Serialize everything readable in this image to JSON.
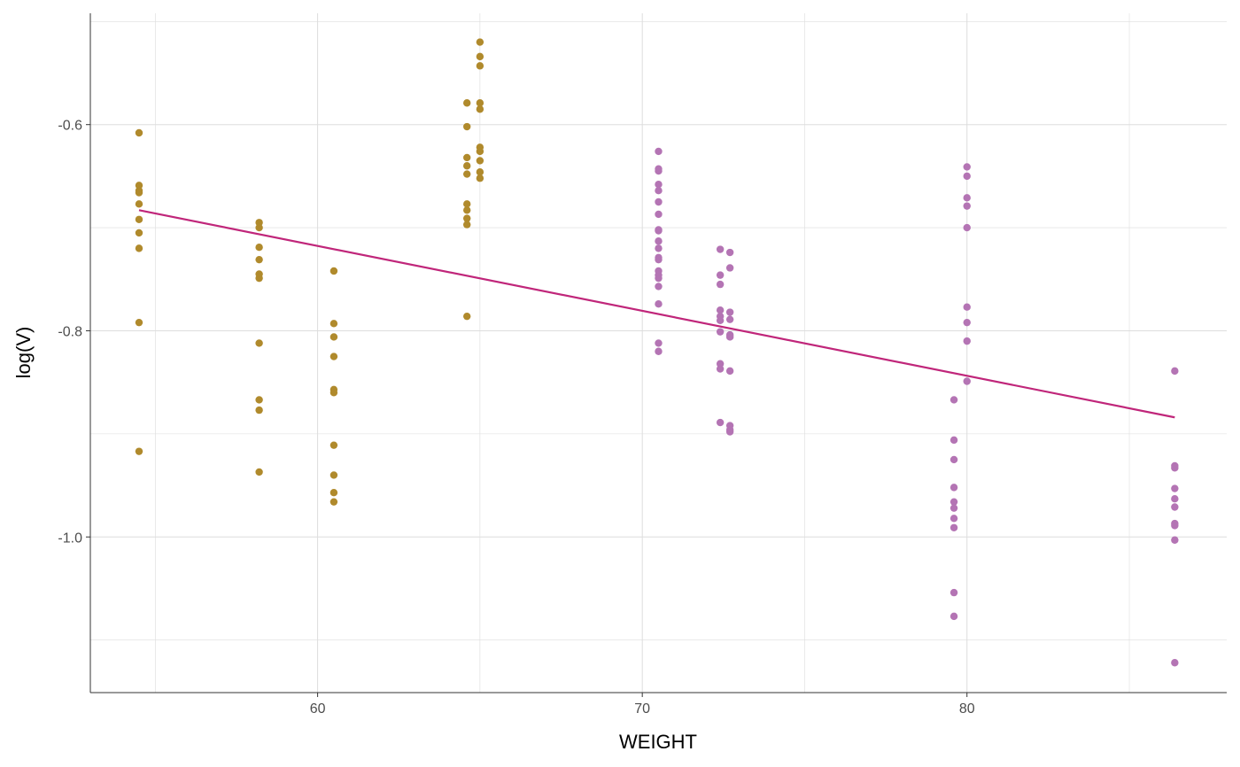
{
  "chart_data": {
    "type": "scatter",
    "title": "",
    "xlabel": "WEIGHT",
    "ylabel": "log(V)",
    "xlim": [
      53,
      88
    ],
    "ylim": [
      -1.151,
      -0.492
    ],
    "x_ticks": [
      60,
      70,
      80
    ],
    "x_tick_labels": [
      "60",
      "70",
      "80"
    ],
    "x_minor_grid": [
      55,
      65,
      75,
      85
    ],
    "y_ticks": [
      -0.6,
      -0.8,
      -1.0
    ],
    "y_tick_labels": [
      "-0.6",
      "-0.8",
      "-1.0"
    ],
    "y_minor_grid": [
      -0.5,
      -0.7,
      -0.9,
      -1.1
    ],
    "grid": true,
    "legend": "none",
    "colors": {
      "group_a": "#B08A2C",
      "group_b": "#B474B4",
      "fit_line": "#C0267A",
      "grid": "#dddddd",
      "axis": "#333333"
    },
    "groups": [
      {
        "color_key": "group_a",
        "points": [
          {
            "x": 54.5,
            "y": [
              -0.608,
              -0.659,
              -0.664,
              -0.666,
              -0.677,
              -0.692,
              -0.705,
              -0.72,
              -0.792,
              -0.917
            ]
          },
          {
            "x": 58.2,
            "y": [
              -0.695,
              -0.7,
              -0.719,
              -0.731,
              -0.745,
              -0.749,
              -0.812,
              -0.867,
              -0.877,
              -0.937
            ]
          },
          {
            "x": 60.5,
            "y": [
              -0.742,
              -0.793,
              -0.806,
              -0.825,
              -0.857,
              -0.86,
              -0.911,
              -0.94,
              -0.957,
              -0.966
            ]
          },
          {
            "x": 64.6,
            "y": [
              -0.579,
              -0.602,
              -0.632,
              -0.64,
              -0.648,
              -0.677,
              -0.683,
              -0.691,
              -0.697,
              -0.786
            ]
          },
          {
            "x": 65.0,
            "y": [
              -0.52,
              -0.534,
              -0.543,
              -0.579,
              -0.585,
              -0.622,
              -0.626,
              -0.635,
              -0.646,
              -0.652
            ]
          }
        ]
      },
      {
        "color_key": "group_b",
        "points": [
          {
            "x": 70.5,
            "y": [
              -0.626,
              -0.643,
              -0.645,
              -0.658,
              -0.664,
              -0.675,
              -0.687,
              -0.702,
              -0.703,
              -0.713,
              -0.72,
              -0.729,
              -0.731,
              -0.742,
              -0.746,
              -0.749,
              -0.757,
              -0.774,
              -0.812,
              -0.82
            ]
          },
          {
            "x": 72.4,
            "y": [
              -0.721,
              -0.746,
              -0.755,
              -0.78,
              -0.786,
              -0.79,
              -0.801,
              -0.832,
              -0.837,
              -0.889
            ]
          },
          {
            "x": 72.7,
            "y": [
              -0.724,
              -0.739,
              -0.782,
              -0.789,
              -0.804,
              -0.806,
              -0.839,
              -0.892,
              -0.896,
              -0.898
            ]
          },
          {
            "x": 79.6,
            "y": [
              -0.867,
              -0.906,
              -0.925,
              -0.952,
              -0.966,
              -0.972,
              -0.982,
              -0.991,
              -1.054,
              -1.077
            ]
          },
          {
            "x": 80.0,
            "y": [
              -0.641,
              -0.65,
              -0.671,
              -0.679,
              -0.7,
              -0.777,
              -0.792,
              -0.81,
              -0.849
            ]
          },
          {
            "x": 86.4,
            "y": [
              -0.839,
              -0.931,
              -0.933,
              -0.953,
              -0.963,
              -0.971,
              -0.987,
              -0.989,
              -1.003,
              -1.122
            ]
          }
        ]
      }
    ],
    "fit_line": {
      "x": [
        54.5,
        86.4
      ],
      "y": [
        -0.683,
        -0.884
      ]
    }
  }
}
